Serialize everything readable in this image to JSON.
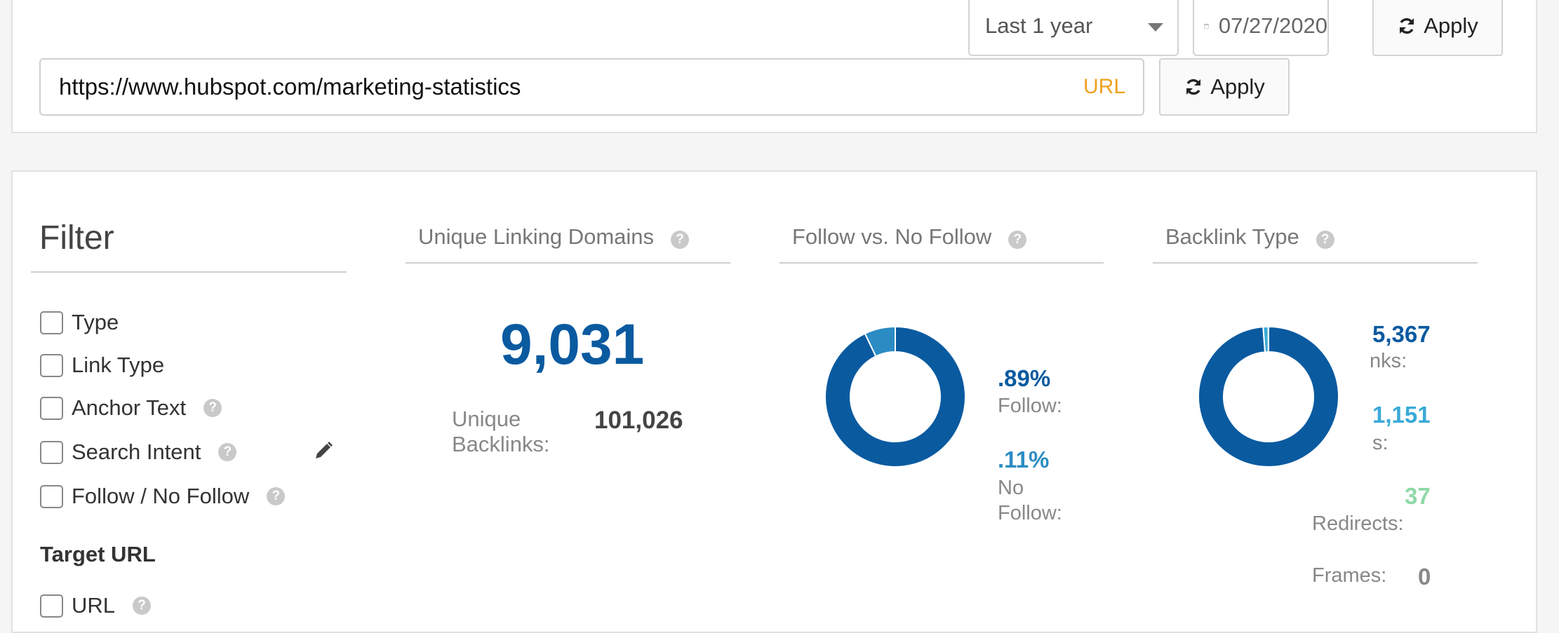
{
  "toolbar": {
    "period": "Last 1 year",
    "date": "07/27/2020",
    "apply_label": "Apply",
    "url_value": "https://www.hubspot.com/marketing-statistics",
    "url_tag": "URL",
    "url_apply_label": "Apply"
  },
  "filter": {
    "title": "Filter",
    "items": [
      {
        "label": "Type"
      },
      {
        "label": "Link Type"
      },
      {
        "label": "Anchor Text"
      },
      {
        "label": "Search Intent"
      },
      {
        "label": "Follow / No Follow"
      }
    ],
    "target_url_title": "Target URL",
    "target_items": [
      {
        "label": "URL"
      }
    ]
  },
  "widgets": {
    "domains": {
      "title": "Unique Linking Domains",
      "value": "9,031",
      "backlinks_label": "Unique Backlinks:",
      "backlinks_value": "101,026"
    },
    "follow": {
      "title": "Follow vs. No Follow",
      "follow_pct": ".89%",
      "follow_label": "Follow:",
      "nofollow_pct": ".11%",
      "nofollow_label_a": "No",
      "nofollow_label_b": "Follow:"
    },
    "backlink_type": {
      "title": "Backlink Type",
      "links_value": "5,367",
      "links_label": "nks:",
      "second_value": "1,151",
      "second_label": "s:",
      "redirects_value": "37",
      "redirects_label": "Redirects:",
      "frames_label": "Frames:",
      "frames_value": "0"
    }
  },
  "chart_data": [
    {
      "type": "pie",
      "title": "Follow vs. No Follow",
      "categories": [
        "Follow",
        "No Follow"
      ],
      "values": [
        92.89,
        7.11
      ],
      "colors": [
        "#0a5aa0",
        "#2b8cc4"
      ]
    },
    {
      "type": "pie",
      "title": "Backlink Type",
      "categories": [
        "Links",
        "Images",
        "Redirects",
        "Frames"
      ],
      "values": [
        95367,
        1151,
        37,
        0
      ],
      "colors": [
        "#0a5aa0",
        "#3aaad8",
        "#8fd8a8",
        "#cccccc"
      ]
    }
  ],
  "colors": {
    "primary": "#0a5aa0",
    "secondary": "#2b8cc4",
    "light_blue": "#3aaad8",
    "green": "#8fd8a8",
    "url_tag": "#f0a020"
  }
}
